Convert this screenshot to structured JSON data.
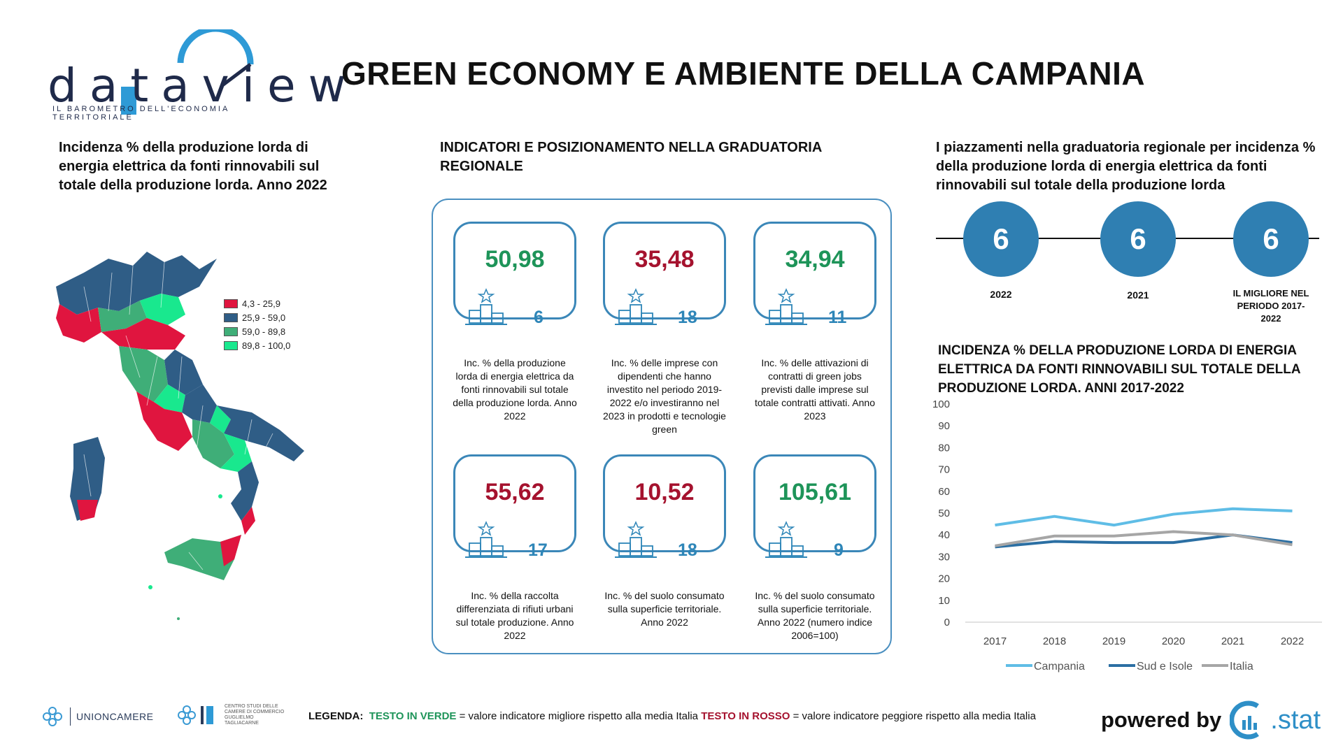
{
  "brand": {
    "name": "dataview",
    "tagline": "IL BAROMETRO DELL'ECONOMIA TERRITORIALE"
  },
  "title": "GREEN ECONOMY E AMBIENTE DELLA CAMPANIA",
  "map_section": {
    "title": "Incidenza % della produzione lorda di energia elettrica da fonti rinnovabili sul totale della produzione lorda. Anno 2022",
    "legend": [
      {
        "label": "4,3 - 25,9",
        "color": "#e0153f"
      },
      {
        "label": "25,9 - 59,0",
        "color": "#2f5d86"
      },
      {
        "label": "59,0 - 89,8",
        "color": "#3fae78"
      },
      {
        "label": "89,8 - 100,0",
        "color": "#19e88e"
      }
    ]
  },
  "indicators": {
    "title": "INDICATORI E POSIZIONAMENTO NELLA GRADUATORIA REGIONALE",
    "cards": [
      {
        "value": "50,98",
        "rank": "6",
        "tone": "green",
        "desc": "Inc. % della produzione lorda di energia elettrica da fonti rinnovabili sul totale della produzione lorda. Anno 2022"
      },
      {
        "value": "35,48",
        "rank": "18",
        "tone": "red",
        "desc": "Inc. % delle imprese con dipendenti che hanno investito nel periodo 2019-2022 e/o investiranno nel 2023 in prodotti e tecnologie green"
      },
      {
        "value": "34,94",
        "rank": "11",
        "tone": "green",
        "desc": "Inc. % delle attivazioni di contratti di green jobs previsti dalle imprese sul totale contratti attivati. Anno 2023"
      },
      {
        "value": "55,62",
        "rank": "17",
        "tone": "red",
        "desc": "Inc. % della raccolta differenziata di rifiuti urbani sul totale produzione. Anno 2022"
      },
      {
        "value": "10,52",
        "rank": "18",
        "tone": "red",
        "desc": "Inc. % del suolo consumato sulla superficie territoriale. Anno 2022"
      },
      {
        "value": "105,61",
        "rank": "9",
        "tone": "green",
        "desc": "Inc. % del suolo consumato sulla superficie territoriale. Anno 2022 (numero indice 2006=100)"
      }
    ]
  },
  "rankings": {
    "title": "I piazzamenti nella graduatoria regionale per incidenza % della produzione lorda di energia elettrica da fonti rinnovabili sul totale della produzione lorda",
    "items": [
      {
        "value": "6",
        "label": "2022"
      },
      {
        "value": "6",
        "label": "2021"
      },
      {
        "value": "6",
        "label": "IL MIGLIORE NEL PERIODO 2017-2022"
      }
    ]
  },
  "line_chart_title": "INCIDENZA % DELLA PRODUZIONE LORDA DI ENERGIA ELETTRICA DA FONTI RINNOVABILI SUL TOTALE DELLA PRODUZIONE LORDA. ANNI 2017-2022",
  "chart_data": {
    "type": "line",
    "title": "INCIDENZA % DELLA PRODUZIONE LORDA DI ENERGIA ELETTRICA DA FONTI RINNOVABILI SUL TOTALE DELLA PRODUZIONE LORDA. ANNI 2017-2022",
    "x": [
      "2017",
      "2018",
      "2019",
      "2020",
      "2021",
      "2022"
    ],
    "ylim": [
      0,
      100
    ],
    "yticks": [
      0,
      10,
      20,
      30,
      40,
      50,
      60,
      70,
      80,
      90,
      100
    ],
    "grid": false,
    "legend_position": "bottom",
    "series": [
      {
        "name": "Campania",
        "color": "#5fbde6",
        "values": [
          44.5,
          48.5,
          44.5,
          49.5,
          52,
          51
        ]
      },
      {
        "name": "Sud e Isole",
        "color": "#2b6fa3",
        "values": [
          34.5,
          37,
          36.5,
          36.5,
          40,
          36.5
        ]
      },
      {
        "name": "Italia",
        "color": "#a6a6a6",
        "values": [
          35,
          39.5,
          39.5,
          41.5,
          40,
          35.5
        ]
      }
    ]
  },
  "footer": {
    "unioncamere": "UNIONCAMERE",
    "centro_studi": "CENTRO STUDI DELLE CAMERE DI COMMERCIO GUGLIELMO TAGLIACARNE",
    "legend_label": "LEGENDA:",
    "green_text": "TESTO IN VERDE",
    "green_desc": "= valore indicatore migliore rispetto alla media Italia",
    "red_text": "TESTO IN ROSSO",
    "red_desc": "= valore indicatore peggiore rispetto alla media Italia",
    "powered_by": "powered by",
    "stat": ".stat",
    "colors": {
      "green": "#1e9459",
      "red": "#a5122e"
    }
  }
}
